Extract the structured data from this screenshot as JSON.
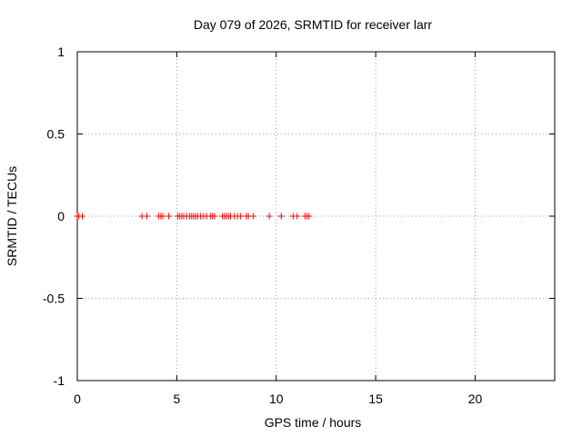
{
  "chart_data": {
    "type": "scatter",
    "title": "Day 079 of 2026, SRMTID for receiver larr",
    "xlabel": "GPS time / hours",
    "ylabel": "SRMTID / TECUs",
    "xlim": [
      0,
      24
    ],
    "ylim": [
      -1,
      1
    ],
    "x_ticks": [
      0,
      5,
      10,
      15,
      20
    ],
    "y_ticks": [
      -1,
      -0.5,
      0,
      0.5,
      1
    ],
    "x_tick_labels": [
      "0",
      "5",
      "10",
      "15",
      "20"
    ],
    "y_tick_labels": [
      "-1",
      "-0.5",
      "0",
      "0.5",
      "1"
    ],
    "grid": true,
    "marker": "+",
    "color": "#ff0000",
    "series": [
      {
        "name": "SRMTID",
        "points": [
          [
            0.0,
            0
          ],
          [
            0.08,
            0
          ],
          [
            0.25,
            0
          ],
          [
            3.25,
            0
          ],
          [
            3.5,
            0
          ],
          [
            4.1,
            0
          ],
          [
            4.2,
            0
          ],
          [
            4.3,
            0
          ],
          [
            4.6,
            0
          ],
          [
            5.05,
            0
          ],
          [
            5.15,
            0
          ],
          [
            5.25,
            0
          ],
          [
            5.35,
            0
          ],
          [
            5.5,
            0
          ],
          [
            5.65,
            0
          ],
          [
            5.75,
            0
          ],
          [
            5.85,
            0
          ],
          [
            5.95,
            0
          ],
          [
            6.05,
            0
          ],
          [
            6.2,
            0
          ],
          [
            6.35,
            0
          ],
          [
            6.5,
            0
          ],
          [
            6.7,
            0
          ],
          [
            6.8,
            0
          ],
          [
            6.9,
            0
          ],
          [
            7.3,
            0
          ],
          [
            7.4,
            0
          ],
          [
            7.5,
            0
          ],
          [
            7.6,
            0
          ],
          [
            7.7,
            0
          ],
          [
            7.9,
            0
          ],
          [
            8.05,
            0
          ],
          [
            8.2,
            0
          ],
          [
            8.5,
            0
          ],
          [
            8.6,
            0
          ],
          [
            8.85,
            0
          ],
          [
            9.65,
            0
          ],
          [
            10.25,
            0
          ],
          [
            10.85,
            0
          ],
          [
            11.05,
            0
          ],
          [
            11.45,
            0
          ],
          [
            11.55,
            0
          ],
          [
            11.65,
            0
          ]
        ]
      }
    ]
  }
}
